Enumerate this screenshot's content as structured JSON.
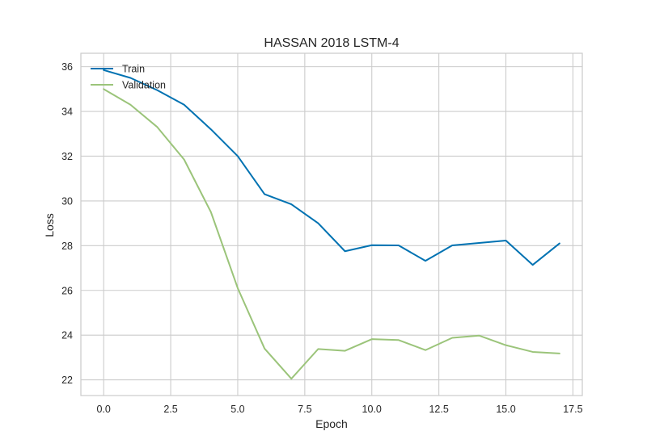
{
  "chart_data": {
    "type": "line",
    "title": "HASSAN 2018 LSTM-4",
    "xlabel": "Epoch",
    "ylabel": "Loss",
    "xlim": [
      -0.85,
      17.85
    ],
    "ylim": [
      21.3,
      36.6
    ],
    "xticks": [
      0.0,
      2.5,
      5.0,
      7.5,
      10.0,
      12.5,
      15.0,
      17.5
    ],
    "xtick_labels": [
      "0.0",
      "2.5",
      "5.0",
      "7.5",
      "10.0",
      "12.5",
      "15.0",
      "17.5"
    ],
    "yticks": [
      22,
      24,
      26,
      28,
      30,
      32,
      34,
      36
    ],
    "ytick_labels": [
      "22",
      "24",
      "26",
      "28",
      "30",
      "32",
      "34",
      "36"
    ],
    "grid": true,
    "legend_position": "top-left",
    "x": [
      0,
      1,
      2,
      3,
      4,
      5,
      6,
      7,
      8,
      9,
      10,
      11,
      12,
      13,
      14,
      15,
      16,
      17
    ],
    "series": [
      {
        "name": "Train",
        "color": "#0072B2",
        "values": [
          35.85,
          35.5,
          34.95,
          34.3,
          33.2,
          32.0,
          30.3,
          29.85,
          29.0,
          27.75,
          28.02,
          28.01,
          27.32,
          28.01,
          28.12,
          28.23,
          27.14,
          28.1
        ]
      },
      {
        "name": "Validation",
        "color": "#9BC47A",
        "values": [
          35.0,
          34.3,
          33.3,
          31.85,
          29.5,
          26.1,
          23.4,
          22.05,
          23.38,
          23.3,
          23.82,
          23.78,
          23.33,
          23.88,
          23.98,
          23.55,
          23.25,
          23.18
        ]
      }
    ]
  }
}
